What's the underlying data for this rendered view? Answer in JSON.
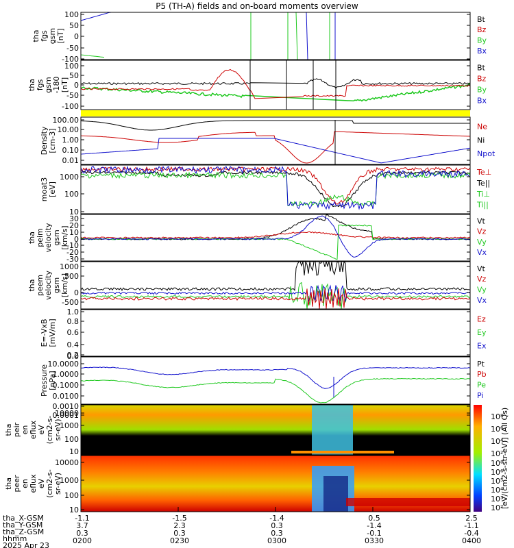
{
  "title": "P5 (TH-A) fields and on-board moments overview",
  "colors": {
    "black": "#000000",
    "red": "#cc0000",
    "green": "#1ec81e",
    "blue": "#1010cc",
    "yellow": "#ffff00"
  },
  "chart_data": [
    {
      "type": "line",
      "panel": "fgs",
      "ylabel": [
        "tha",
        "fgs",
        "gsm",
        "[nT]"
      ],
      "yticks": [
        "100",
        "50",
        "0",
        "-50",
        "-100"
      ],
      "ylim": [
        -100,
        100
      ],
      "legend": [
        {
          "name": "Bt",
          "color": "#000000"
        },
        {
          "name": "Bz",
          "color": "#cc0000"
        },
        {
          "name": "By",
          "color": "#1ec81e"
        },
        {
          "name": "Bx",
          "color": "#1010cc"
        }
      ]
    },
    {
      "type": "line",
      "panel": "fgs_dsl",
      "ylabel": [
        "tha",
        "fgs",
        "gsm",
        "-180",
        "[nT]"
      ],
      "yticks": [
        "100",
        "50",
        "0",
        "-50",
        "-100"
      ],
      "ylim": [
        -120,
        120
      ],
      "legend": [
        {
          "name": "Bt",
          "color": "#000000"
        },
        {
          "name": "Bz",
          "color": "#cc0000"
        },
        {
          "name": "By",
          "color": "#1ec81e"
        },
        {
          "name": "Bx",
          "color": "#1010cc"
        }
      ]
    },
    {
      "type": "line",
      "panel": "density",
      "ylabel": [
        "Density",
        "[cm-3]"
      ],
      "yticks": [
        "100.00",
        "10.00",
        "1.00",
        "0.10",
        "0.01"
      ],
      "scale": "log",
      "legend": [
        {
          "name": "Ne",
          "color": "#cc0000"
        },
        {
          "name": "Ni",
          "color": "#000000"
        },
        {
          "name": "Npot",
          "color": "#1010cc"
        }
      ]
    },
    {
      "type": "line",
      "panel": "temperature",
      "ylabel": [
        "moat3",
        "[eV]"
      ],
      "yticks": [
        "1000",
        "100",
        "10"
      ],
      "scale": "log",
      "legend": [
        {
          "name": "Te⊥",
          "color": "#cc0000"
        },
        {
          "name": "Te||",
          "color": "#000000"
        },
        {
          "name": "Ti⊥",
          "color": "#1ec81e"
        },
        {
          "name": "Ti||",
          "color": "#1ec81e"
        }
      ]
    },
    {
      "type": "line",
      "panel": "peim_velocity",
      "ylabel": [
        "tha",
        "peim",
        "velocity",
        "gsm",
        "[km/s]"
      ],
      "yticks": [
        "30",
        "20",
        "10",
        "0",
        "-10",
        "-20",
        "-30"
      ],
      "ylim": [
        -30,
        35
      ],
      "legend": [
        {
          "name": "Vt",
          "color": "#000000"
        },
        {
          "name": "Vz",
          "color": "#cc0000"
        },
        {
          "name": "Vy",
          "color": "#1ec81e"
        },
        {
          "name": "Vx",
          "color": "#1010cc"
        }
      ]
    },
    {
      "type": "line",
      "panel": "peem_velocity",
      "ylabel": [
        "tha",
        "peem",
        "velocity",
        "gsm",
        "[km/s]"
      ],
      "yticks": [
        "1000",
        "500",
        "0",
        "-500"
      ],
      "ylim": [
        -600,
        1000
      ],
      "legend": [
        {
          "name": "Vt",
          "color": "#000000"
        },
        {
          "name": "Vz",
          "color": "#cc0000"
        },
        {
          "name": "Vy",
          "color": "#1ec81e"
        },
        {
          "name": "Vx",
          "color": "#1010cc"
        }
      ]
    },
    {
      "type": "line",
      "panel": "efield",
      "ylabel": [
        "E=-VxB",
        "[mV/m]"
      ],
      "yticks": [
        "1.0",
        "0.8",
        "0.6",
        "0.4",
        "0.2",
        "0.0"
      ],
      "ylim": [
        0,
        1
      ],
      "legend": [
        {
          "name": "Ez",
          "color": "#cc0000"
        },
        {
          "name": "Ey",
          "color": "#1ec81e"
        },
        {
          "name": "Ex",
          "color": "#1010cc"
        }
      ]
    },
    {
      "type": "line",
      "panel": "pressure",
      "ylabel": [
        "Pressure",
        "[nPa]"
      ],
      "yticks": [
        "10.0000",
        "1.0000",
        "0.1000",
        "0.0100",
        "0.0010",
        "0.0001"
      ],
      "scale": "log",
      "legend": [
        {
          "name": "Pt",
          "color": "#000000"
        },
        {
          "name": "Pb",
          "color": "#cc0000"
        },
        {
          "name": "Pe",
          "color": "#1ec81e"
        },
        {
          "name": "Pi",
          "color": "#1010cc"
        }
      ]
    },
    {
      "type": "heatmap",
      "panel": "peir",
      "ylabel": [
        "tha",
        "peir",
        "en",
        "eflux",
        "eV",
        "(cm2-s-",
        "sr-eV)"
      ],
      "yticks": [
        "10000",
        "1000",
        "100",
        "10"
      ]
    },
    {
      "type": "heatmap",
      "panel": "peer",
      "ylabel": [
        "tha",
        "peer",
        "en",
        "eflux",
        "eV",
        "(cm2-s-",
        "sr-eV)"
      ],
      "yticks": [
        "10000",
        "1000",
        "100",
        "10"
      ]
    }
  ],
  "colorbar": {
    "label": "[eV/(cm2-s-str-eV)] (All Qs)",
    "ticks_top": [
      "10⁸",
      "10⁶",
      "10⁴",
      "10²"
    ],
    "ticks_bottom": [
      "10⁸",
      "10⁶",
      "10⁵",
      "10⁴",
      "10³",
      "10²"
    ]
  },
  "xaxis": {
    "row_labels": [
      "tha_X-GSM",
      "tha_Y-GSM",
      "tha_Z-GSM",
      "hhmm",
      "2025 Apr 23"
    ],
    "columns": [
      {
        "x": "-1.1",
        "y": "3.7",
        "z": "0.3",
        "t": "0200"
      },
      {
        "x": "-1.5",
        "y": "2.3",
        "z": "0.3",
        "t": "0230"
      },
      {
        "x": "-1.4",
        "y": "0.3",
        "z": "0.3",
        "t": "0300"
      },
      {
        "x": "0.5",
        "y": "-1.4",
        "z": "-0.1",
        "t": "0330"
      },
      {
        "x": "2.5",
        "y": "-1.1",
        "z": "-0.4",
        "t": "0400"
      }
    ]
  }
}
